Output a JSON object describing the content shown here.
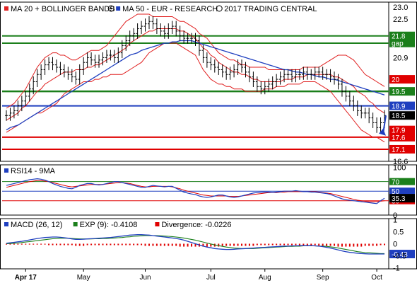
{
  "chart_data": [
    {
      "type": "candlestick",
      "legend": [
        {
          "label": "MA 20 + BOLLINGER BANDS",
          "color": "#e02020",
          "icon": "circle-mark-icon"
        },
        {
          "label": "MA 50 - EUR - RESEARCH",
          "color": "#1f3fbf",
          "icon": "copyright-icon"
        },
        {
          "label": "2017 TRADING CENTRAL",
          "color": "#000000",
          "icon": ""
        }
      ],
      "ylim": [
        16.6,
        23.2
      ],
      "yticks": [
        "23.0",
        "22.5",
        "20.9",
        "16.6"
      ],
      "grid": false,
      "level_lines": [
        {
          "value": 21.8,
          "color": "#1b7f1b",
          "label": "21.8",
          "sublabel": "gap"
        },
        {
          "value": 21.5,
          "color": "#1b7f1b",
          "label": "",
          "sublabel": ""
        },
        {
          "value": 19.5,
          "color": "#1b7f1b",
          "label": "19.5",
          "sublabel": ""
        },
        {
          "value": 18.9,
          "color": "#1f3fbf",
          "label": "18.9",
          "sublabel": ""
        },
        {
          "value": 17.6,
          "color": "#e00000",
          "label": "17.6",
          "sublabel": ""
        },
        {
          "value": 17.1,
          "color": "#e00000",
          "label": "17.1",
          "sublabel": ""
        }
      ],
      "value_tags": [
        {
          "value": 20.0,
          "label": "20",
          "color": "#e00000"
        },
        {
          "value": 18.5,
          "label": "18.5",
          "color": "#000000"
        },
        {
          "value": 17.9,
          "label": "17.9",
          "color": "#e00000"
        }
      ],
      "close": [
        18.5,
        18.6,
        18.7,
        18.9,
        19.1,
        19.3,
        19.6,
        19.9,
        20.2,
        20.4,
        20.6,
        20.7,
        20.6,
        20.5,
        20.4,
        20.3,
        20.2,
        20.1,
        20.0,
        20.4,
        20.7,
        20.9,
        20.8,
        20.7,
        20.8,
        20.9,
        21.0,
        21.0,
        20.9,
        21.1,
        21.4,
        21.6,
        21.8,
        21.9,
        22.1,
        22.2,
        22.3,
        22.4,
        22.3,
        22.1,
        22.0,
        21.9,
        22.1,
        22.2,
        22.0,
        21.8,
        21.7,
        21.7,
        21.7,
        21.6,
        21.2,
        20.9,
        20.7,
        20.6,
        20.5,
        20.4,
        20.3,
        20.2,
        20.3,
        20.4,
        20.6,
        20.5,
        20.3,
        20.1,
        19.9,
        19.7,
        19.6,
        19.7,
        19.8,
        19.9,
        20.0,
        20.1,
        20.2,
        20.2,
        20.1,
        20.2,
        20.2,
        20.3,
        20.2,
        20.2,
        20.3,
        20.3,
        20.2,
        20.2,
        20.1,
        20.0,
        19.8,
        19.5,
        19.3,
        19.1,
        18.9,
        18.7,
        18.6,
        18.6,
        18.4,
        18.2,
        18.0,
        18.2,
        18.5
      ],
      "ma20": [
        18.3,
        18.4,
        18.5,
        18.6,
        18.8,
        18.9,
        19.1,
        19.3,
        19.5,
        19.6,
        19.8,
        19.9,
        20.0,
        20.1,
        20.2,
        20.3,
        20.3,
        20.3,
        20.4,
        20.4,
        20.4,
        20.5,
        20.5,
        20.6,
        20.6,
        20.7,
        20.8,
        20.9,
        21.0,
        21.1,
        21.2,
        21.3,
        21.5,
        21.6,
        21.7,
        21.8,
        21.9,
        22.0,
        22.0,
        22.1,
        22.1,
        22.1,
        22.1,
        22.1,
        22.1,
        22.0,
        22.0,
        21.9,
        21.8,
        21.7,
        21.5,
        21.3,
        21.2,
        21.0,
        20.9,
        20.7,
        20.6,
        20.5,
        20.4,
        20.3,
        20.3,
        20.2,
        20.2,
        20.1,
        20.0,
        20.0,
        19.9,
        19.9,
        19.9,
        19.9,
        19.9,
        19.9,
        20.0,
        20.0,
        20.0,
        20.1,
        20.1,
        20.1,
        20.2,
        20.2,
        20.2,
        20.2,
        20.2,
        20.2,
        20.2,
        20.1,
        20.1,
        20.0,
        19.9,
        19.8,
        19.7,
        19.5,
        19.4,
        19.3,
        19.1,
        19.0,
        18.8,
        18.7,
        18.6
      ],
      "bb_upper": [
        18.8,
        18.9,
        19.0,
        19.2,
        19.4,
        19.6,
        19.9,
        20.2,
        20.5,
        20.7,
        20.9,
        21.0,
        21.1,
        21.1,
        21.0,
        21.0,
        20.9,
        20.8,
        20.8,
        20.9,
        21.0,
        21.1,
        21.2,
        21.2,
        21.2,
        21.3,
        21.4,
        21.6,
        21.8,
        22.0,
        22.2,
        22.4,
        22.5,
        22.6,
        22.7,
        22.7,
        22.7,
        22.7,
        22.6,
        22.6,
        22.6,
        22.6,
        22.6,
        22.6,
        22.5,
        22.4,
        22.4,
        22.3,
        22.2,
        22.1,
        21.9,
        21.8,
        21.7,
        21.5,
        21.3,
        21.1,
        21.0,
        20.9,
        20.8,
        20.8,
        20.7,
        20.6,
        20.6,
        20.5,
        20.5,
        20.5,
        20.5,
        20.5,
        20.4,
        20.4,
        20.4,
        20.4,
        20.4,
        20.4,
        20.4,
        20.4,
        20.4,
        20.5,
        20.5,
        20.5,
        20.5,
        20.5,
        20.6,
        20.7,
        20.8,
        20.9,
        21.0,
        21.0,
        21.0,
        20.9,
        20.8,
        20.6,
        20.4,
        20.2,
        20.1,
        20.0,
        19.9,
        19.8,
        19.7
      ],
      "bb_lower": [
        17.8,
        17.9,
        18.0,
        18.1,
        18.2,
        18.3,
        18.4,
        18.5,
        18.6,
        18.6,
        18.7,
        18.8,
        18.9,
        19.0,
        19.2,
        19.4,
        19.5,
        19.6,
        19.7,
        19.8,
        19.9,
        19.9,
        19.9,
        20.0,
        20.0,
        20.1,
        20.1,
        20.2,
        20.2,
        20.2,
        20.2,
        20.3,
        20.4,
        20.5,
        20.6,
        20.7,
        20.9,
        21.1,
        21.2,
        21.3,
        21.4,
        21.5,
        21.5,
        21.5,
        21.5,
        21.4,
        21.3,
        21.2,
        21.1,
        21.0,
        20.7,
        20.4,
        20.2,
        20.0,
        19.9,
        19.8,
        19.8,
        19.7,
        19.7,
        19.6,
        19.6,
        19.6,
        19.5,
        19.5,
        19.5,
        19.5,
        19.5,
        19.6,
        19.6,
        19.6,
        19.7,
        19.7,
        19.7,
        19.8,
        19.8,
        19.8,
        19.8,
        19.9,
        19.9,
        19.9,
        19.9,
        19.8,
        19.7,
        19.6,
        19.5,
        19.3,
        19.1,
        18.9,
        18.7,
        18.5,
        18.3,
        18.1,
        17.9,
        17.8,
        17.7,
        17.6,
        17.6,
        17.5,
        17.4
      ],
      "ma50": [
        17.9,
        18.0,
        18.05,
        18.1,
        18.2,
        18.3,
        18.4,
        18.5,
        18.6,
        18.7,
        18.8,
        18.9,
        19.0,
        19.1,
        19.2,
        19.3,
        19.4,
        19.5,
        19.6,
        19.7,
        19.8,
        19.9,
        20.0,
        20.1,
        20.2,
        20.3,
        20.4,
        20.5,
        20.6,
        20.7,
        20.8,
        20.9,
        21.0,
        21.05,
        21.1,
        21.2,
        21.25,
        21.3,
        21.35,
        21.4,
        21.45,
        21.5,
        21.5,
        21.55,
        21.55,
        21.6,
        21.6,
        21.6,
        21.6,
        21.55,
        21.5,
        21.45,
        21.4,
        21.35,
        21.3,
        21.25,
        21.2,
        21.15,
        21.1,
        21.05,
        21.0,
        20.95,
        20.9,
        20.85,
        20.8,
        20.75,
        20.7,
        20.65,
        20.6,
        20.55,
        20.5,
        20.45,
        20.4,
        20.4,
        20.35,
        20.3,
        20.3,
        20.25,
        20.2,
        20.2,
        20.15,
        20.1,
        20.1,
        20.05,
        20.0,
        20.0,
        19.95,
        19.9,
        19.85,
        19.8,
        19.75,
        19.7,
        19.65,
        19.6,
        19.55,
        19.5,
        19.45,
        19.4,
        19.35
      ]
    },
    {
      "type": "line",
      "title": "RSI14 - 9MA",
      "ylim": [
        0,
        105
      ],
      "yticks": [
        "100",
        "0"
      ],
      "level_lines": [
        {
          "value": 70,
          "color": "#1b7f1b",
          "label": "70"
        },
        {
          "value": 50,
          "color": "#1f3fbf",
          "label": "50"
        },
        {
          "value": 30,
          "color": "#e00000",
          "label": "30"
        }
      ],
      "current_tag": {
        "value": 35.3,
        "label": "35.3",
        "color": "#000000"
      },
      "series": [
        {
          "color": "#1f3fbf",
          "values": [
            62,
            64,
            66,
            68,
            70,
            72,
            74,
            75,
            76,
            75,
            73,
            70,
            66,
            63,
            60,
            58,
            56,
            55,
            58,
            62,
            64,
            66,
            66,
            64,
            63,
            64,
            66,
            68,
            70,
            70,
            68,
            66,
            64,
            62,
            60,
            58,
            58,
            60,
            62,
            61,
            60,
            59,
            60,
            60,
            56,
            52,
            48,
            46,
            44,
            43,
            40,
            38,
            37,
            38,
            40,
            42,
            42,
            40,
            38,
            37,
            38,
            40,
            42,
            44,
            46,
            47,
            48,
            48,
            48,
            47,
            48,
            49,
            50,
            50,
            50,
            51,
            50,
            49,
            49,
            48,
            48,
            47,
            46,
            45,
            43,
            40,
            37,
            34,
            32,
            31,
            30,
            29,
            28,
            27,
            26,
            25,
            24,
            30,
            35
          ]
        },
        {
          "color": "#e00000",
          "values": [
            58,
            60,
            62,
            64,
            66,
            68,
            70,
            71,
            72,
            72,
            71,
            70,
            68,
            66,
            64,
            62,
            60,
            59,
            60,
            61,
            62,
            63,
            64,
            64,
            64,
            64,
            65,
            66,
            67,
            68,
            68,
            67,
            66,
            64,
            62,
            60,
            59,
            59,
            60,
            60,
            60,
            60,
            60,
            59,
            57,
            55,
            52,
            50,
            48,
            46,
            44,
            42,
            41,
            40,
            40,
            40,
            40,
            40,
            39,
            39,
            39,
            40,
            41,
            42,
            43,
            44,
            45,
            46,
            47,
            47,
            47,
            48,
            48,
            49,
            49,
            49,
            49,
            49,
            49,
            49,
            49,
            48,
            47,
            46,
            45,
            43,
            41,
            39,
            37,
            35,
            33,
            31,
            30,
            29,
            28,
            28,
            28,
            29,
            30
          ]
        }
      ]
    },
    {
      "type": "line",
      "legend": [
        {
          "label": "MACD (26, 12)",
          "color": "#1f3fbf"
        },
        {
          "label": "EXP (9): -0.4108",
          "color": "#1b7f1b"
        },
        {
          "label": "Divergence: -0.0226",
          "color": "#e00000"
        }
      ],
      "ylim": [
        -1.05,
        1.05
      ],
      "yticks": [
        "1",
        "0.5",
        "0",
        "-0.5",
        "-1"
      ],
      "current_tag": {
        "value": -0.43,
        "label": "-0.43",
        "color": "#1f3fbf"
      },
      "series": [
        {
          "name": "MACD",
          "color": "#1f3fbf",
          "values": [
            0.02,
            0.04,
            0.06,
            0.08,
            0.1,
            0.13,
            0.16,
            0.19,
            0.22,
            0.24,
            0.26,
            0.27,
            0.28,
            0.28,
            0.27,
            0.25,
            0.23,
            0.2,
            0.18,
            0.18,
            0.19,
            0.2,
            0.21,
            0.22,
            0.23,
            0.24,
            0.25,
            0.26,
            0.28,
            0.3,
            0.32,
            0.34,
            0.36,
            0.37,
            0.38,
            0.38,
            0.37,
            0.36,
            0.34,
            0.32,
            0.3,
            0.28,
            0.26,
            0.24,
            0.22,
            0.19,
            0.15,
            0.1,
            0.05,
            0.0,
            -0.05,
            -0.1,
            -0.14,
            -0.17,
            -0.2,
            -0.22,
            -0.23,
            -0.24,
            -0.24,
            -0.23,
            -0.22,
            -0.21,
            -0.2,
            -0.19,
            -0.18,
            -0.17,
            -0.16,
            -0.15,
            -0.14,
            -0.13,
            -0.12,
            -0.11,
            -0.1,
            -0.1,
            -0.09,
            -0.09,
            -0.08,
            -0.08,
            -0.08,
            -0.08,
            -0.09,
            -0.1,
            -0.12,
            -0.15,
            -0.18,
            -0.22,
            -0.26,
            -0.3,
            -0.33,
            -0.36,
            -0.38,
            -0.4,
            -0.41,
            -0.42,
            -0.43,
            -0.43,
            -0.43,
            -0.43,
            -0.43
          ]
        },
        {
          "name": "EXP",
          "color": "#1b7f1b",
          "values": [
            0.0,
            0.01,
            0.02,
            0.03,
            0.05,
            0.07,
            0.09,
            0.11,
            0.13,
            0.15,
            0.17,
            0.19,
            0.21,
            0.22,
            0.23,
            0.23,
            0.23,
            0.22,
            0.21,
            0.2,
            0.2,
            0.2,
            0.2,
            0.21,
            0.21,
            0.22,
            0.22,
            0.23,
            0.24,
            0.25,
            0.26,
            0.28,
            0.29,
            0.31,
            0.32,
            0.33,
            0.34,
            0.34,
            0.34,
            0.34,
            0.33,
            0.32,
            0.31,
            0.3,
            0.28,
            0.26,
            0.24,
            0.21,
            0.18,
            0.15,
            0.11,
            0.07,
            0.03,
            -0.01,
            -0.05,
            -0.08,
            -0.11,
            -0.14,
            -0.16,
            -0.18,
            -0.19,
            -0.2,
            -0.2,
            -0.2,
            -0.2,
            -0.19,
            -0.18,
            -0.17,
            -0.16,
            -0.15,
            -0.14,
            -0.13,
            -0.12,
            -0.11,
            -0.11,
            -0.1,
            -0.1,
            -0.09,
            -0.09,
            -0.09,
            -0.09,
            -0.1,
            -0.1,
            -0.11,
            -0.13,
            -0.15,
            -0.18,
            -0.21,
            -0.24,
            -0.27,
            -0.3,
            -0.33,
            -0.35,
            -0.37,
            -0.38,
            -0.39,
            -0.4,
            -0.41,
            -0.41
          ]
        }
      ],
      "divergence": [
        0.0,
        0.0,
        0.0,
        0.0,
        0.0,
        0.0,
        0.0,
        -0.01,
        -0.01,
        -0.01,
        -0.01,
        -0.02,
        -0.02,
        -0.02,
        -0.02,
        -0.02,
        -0.02,
        -0.02,
        -0.03,
        -0.03,
        -0.03,
        -0.02,
        -0.02,
        -0.02,
        -0.02,
        -0.02,
        -0.02,
        -0.02,
        -0.02,
        -0.02,
        -0.02,
        -0.02,
        -0.02,
        -0.02,
        -0.02,
        -0.02,
        -0.03,
        -0.03,
        -0.03,
        -0.03,
        -0.03,
        -0.03,
        -0.03,
        -0.03,
        -0.03,
        -0.04,
        -0.04,
        -0.04,
        -0.04,
        -0.04,
        -0.04,
        -0.04,
        -0.04,
        -0.04,
        -0.04,
        -0.04,
        -0.03,
        -0.03,
        -0.03,
        -0.03,
        -0.03,
        -0.03,
        -0.03,
        -0.03,
        -0.03,
        -0.02,
        -0.02,
        -0.02,
        -0.02,
        -0.02,
        -0.02,
        -0.02,
        -0.02,
        -0.02,
        -0.02,
        -0.02,
        -0.02,
        -0.02,
        -0.02,
        -0.02,
        -0.02,
        -0.03,
        -0.03,
        -0.03,
        -0.03,
        -0.03,
        -0.04,
        -0.04,
        -0.04,
        -0.04,
        -0.04,
        -0.04,
        -0.04,
        -0.03,
        -0.03,
        -0.03,
        -0.03,
        -0.02,
        -0.02
      ]
    }
  ],
  "x_axis": {
    "months": [
      {
        "label": "Apr 17",
        "bold": true
      },
      {
        "label": "May",
        "bold": false
      },
      {
        "label": "Jun",
        "bold": false
      },
      {
        "label": "Jul",
        "bold": false
      },
      {
        "label": "Aug",
        "bold": false
      },
      {
        "label": "Sep",
        "bold": false
      },
      {
        "label": "Oct",
        "bold": false
      }
    ]
  }
}
